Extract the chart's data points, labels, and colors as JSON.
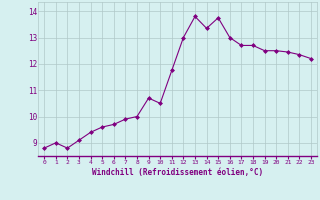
{
  "x": [
    0,
    1,
    2,
    3,
    4,
    5,
    6,
    7,
    8,
    9,
    10,
    11,
    12,
    13,
    14,
    15,
    16,
    17,
    18,
    19,
    20,
    21,
    22,
    23
  ],
  "y": [
    8.8,
    9.0,
    8.8,
    9.1,
    9.4,
    9.6,
    9.7,
    9.9,
    10.0,
    10.7,
    10.5,
    11.75,
    13.0,
    13.8,
    13.35,
    13.75,
    13.0,
    12.7,
    12.7,
    12.5,
    12.5,
    12.45,
    12.35,
    12.2
  ],
  "xlabel": "Windchill (Refroidissement éolien,°C)",
  "ylim": [
    8.5,
    14.35
  ],
  "xlim": [
    -0.5,
    23.5
  ],
  "yticks": [
    9,
    10,
    11,
    12,
    13,
    14
  ],
  "xticks": [
    0,
    1,
    2,
    3,
    4,
    5,
    6,
    7,
    8,
    9,
    10,
    11,
    12,
    13,
    14,
    15,
    16,
    17,
    18,
    19,
    20,
    21,
    22,
    23
  ],
  "line_color": "#800080",
  "marker_color": "#800080",
  "bg_color": "#d6f0f0",
  "grid_color": "#b0c8c8",
  "text_color": "#800080"
}
